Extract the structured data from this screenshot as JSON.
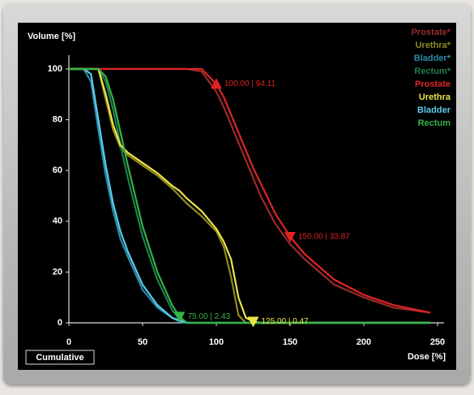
{
  "chart_data": {
    "type": "line",
    "y_label": "Volume [%]",
    "x_label": "Dose [%]",
    "mode_button": "Cumulative",
    "x": [
      0,
      10,
      15,
      20,
      25,
      30,
      35,
      40,
      50,
      60,
      70,
      75,
      80,
      90,
      100,
      105,
      110,
      115,
      120,
      125,
      130,
      140,
      150,
      160,
      180,
      200,
      220,
      245
    ],
    "series": [
      {
        "name": "Prostate*",
        "color": "#9a2a2a",
        "values": [
          100,
          100,
          100,
          100,
          100,
          100,
          100,
          100,
          100,
          100,
          100,
          100,
          100,
          99,
          91,
          85,
          78,
          71,
          64,
          57,
          50,
          39,
          31,
          25,
          15,
          10,
          6,
          4
        ]
      },
      {
        "name": "Urethra*",
        "color": "#8f8a22",
        "values": [
          100,
          100,
          100,
          100,
          88,
          76,
          69,
          66,
          62,
          58,
          53,
          50,
          47,
          42,
          36,
          30,
          18,
          3,
          0,
          0,
          0,
          0,
          0,
          0,
          0,
          0,
          0,
          0
        ]
      },
      {
        "name": "Bladder*",
        "color": "#2a8aa8",
        "values": [
          100,
          100,
          95,
          76,
          58,
          44,
          33,
          26,
          13,
          6,
          2,
          0.5,
          0,
          0,
          0,
          0,
          0,
          0,
          0,
          0,
          0,
          0,
          0,
          0,
          0,
          0,
          0,
          0
        ]
      },
      {
        "name": "Rectum*",
        "color": "#1f7f4f",
        "values": [
          100,
          100,
          100,
          100,
          95,
          84,
          70,
          57,
          34,
          17,
          5,
          1.5,
          0,
          0,
          0,
          0,
          0,
          0,
          0,
          0,
          0,
          0,
          0,
          0,
          0,
          0,
          0,
          0
        ]
      },
      {
        "name": "Prostate",
        "color": "#e02424",
        "values": [
          100,
          100,
          100,
          100,
          100,
          100,
          100,
          100,
          100,
          100,
          100,
          100,
          100,
          100,
          94,
          89,
          82,
          75,
          68,
          61,
          55,
          43,
          34,
          27,
          17,
          11,
          7,
          4
        ]
      },
      {
        "name": "Urethra",
        "color": "#ece448",
        "values": [
          100,
          100,
          100,
          100,
          90,
          78,
          70,
          67,
          63,
          59,
          54,
          52,
          49,
          44,
          37,
          32,
          25,
          10,
          2,
          0.47,
          0,
          0,
          0,
          0,
          0,
          0,
          0,
          0
        ]
      },
      {
        "name": "Bladder",
        "color": "#5ccaea",
        "values": [
          100,
          100,
          98,
          80,
          62,
          47,
          36,
          28,
          15,
          7,
          2,
          1,
          0,
          0,
          0,
          0,
          0,
          0,
          0,
          0,
          0,
          0,
          0,
          0,
          0,
          0,
          0,
          0
        ]
      },
      {
        "name": "Rectum",
        "color": "#34b444",
        "values": [
          100,
          100,
          100,
          100,
          97,
          88,
          75,
          62,
          38,
          20,
          7,
          2.43,
          0,
          0,
          0,
          0,
          0,
          0,
          0,
          0,
          0,
          0,
          0,
          0,
          0,
          0,
          0,
          0
        ]
      }
    ],
    "markers": [
      {
        "x": 100,
        "y": 94.11,
        "label": "100.00 | 94.11",
        "color": "#e02424",
        "shape": "up"
      },
      {
        "x": 150,
        "y": 33.87,
        "label": "150.00 | 33.87",
        "color": "#e02424",
        "shape": "down"
      },
      {
        "x": 75,
        "y": 2.43,
        "label": "75.00 | 2.43",
        "color": "#34b444",
        "shape": "down"
      },
      {
        "x": 125,
        "y": 0.47,
        "label": "125.00 | 0.47",
        "color": "#ece448",
        "shape": "down"
      }
    ],
    "xlim": [
      0,
      250
    ],
    "ylim": [
      0,
      100
    ],
    "xticks": [
      0,
      50,
      100,
      150,
      200,
      250
    ],
    "yticks": [
      0,
      20,
      40,
      60,
      80,
      100
    ],
    "legend": "top-right"
  }
}
